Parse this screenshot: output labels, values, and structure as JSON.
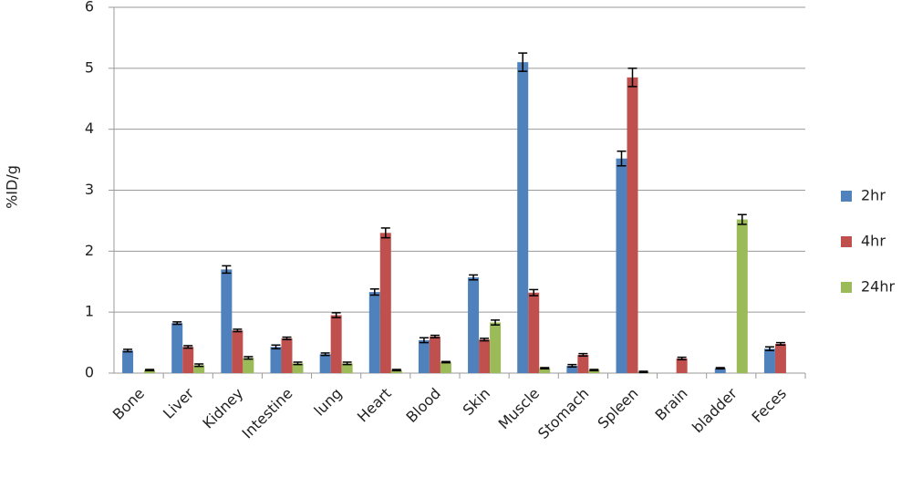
{
  "chart_data": {
    "type": "bar",
    "y_label": "%ID/g",
    "categories": [
      "Bone",
      "Liver",
      "Kidney",
      "Intestine",
      "lung",
      "Heart",
      "Blood",
      "Skin",
      "Muscle",
      "Stomach",
      "Spleen",
      "Brain",
      "bladder",
      "Feces"
    ],
    "series": [
      {
        "name": "2hr",
        "color": "#4f81bd",
        "values": [
          0.37,
          0.82,
          1.7,
          0.43,
          0.31,
          1.33,
          0.54,
          1.57,
          5.1,
          0.12,
          3.52,
          0,
          0.08,
          0.4
        ],
        "errors": [
          0.02,
          0.02,
          0.06,
          0.03,
          0.02,
          0.05,
          0.04,
          0.04,
          0.15,
          0.02,
          0.12,
          null,
          0.01,
          0.03
        ]
      },
      {
        "name": "4hr",
        "color": "#c0504d",
        "values": [
          0,
          0.43,
          0.7,
          0.57,
          0.95,
          2.3,
          0.6,
          0.55,
          1.32,
          0.3,
          4.85,
          0.24,
          0,
          0.48
        ],
        "errors": [
          null,
          0.02,
          0.02,
          0.02,
          0.04,
          0.08,
          0.02,
          0.02,
          0.05,
          0.02,
          0.15,
          0.02,
          null,
          0.02
        ]
      },
      {
        "name": "24hr",
        "color": "#9bbb59",
        "values": [
          0.05,
          0.13,
          0.25,
          0.16,
          0.16,
          0.05,
          0.18,
          0.83,
          0.08,
          0.05,
          0.02,
          0,
          2.52,
          0
        ],
        "errors": [
          0.01,
          0.02,
          0.02,
          0.02,
          0.02,
          0.01,
          0.01,
          0.04,
          0.01,
          0.01,
          0.01,
          null,
          0.08,
          null
        ]
      }
    ],
    "ylim": [
      0,
      6
    ],
    "yticks": [
      0,
      1,
      2,
      3,
      4,
      5,
      6
    ],
    "grid": true,
    "legend": "right"
  }
}
